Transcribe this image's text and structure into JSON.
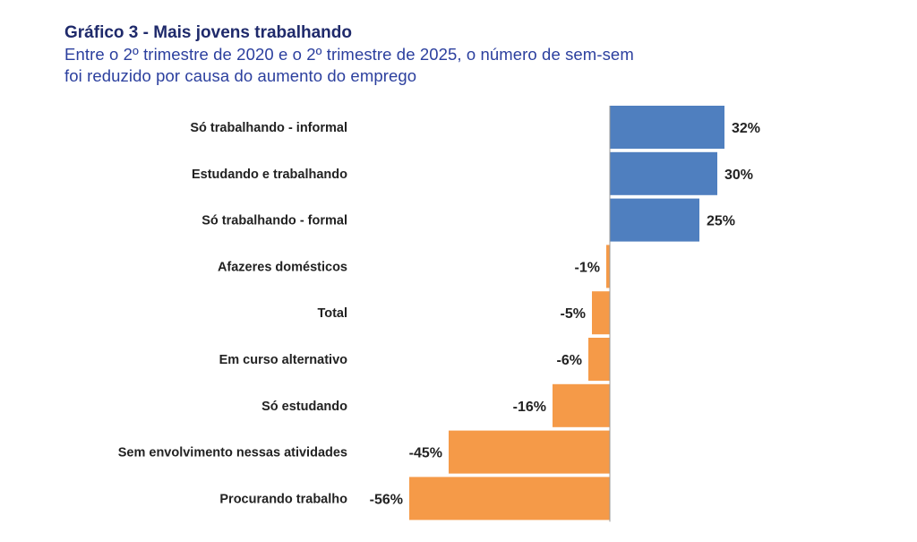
{
  "chart_data": {
    "type": "bar",
    "orientation": "horizontal",
    "title": "Gráfico 3 - Mais jovens trabalhando",
    "subtitle_lines": [
      "Entre o 2º trimestre de 2020 e o 2º trimestre de 2025, o número de sem-sem",
      "foi reduzido por causa do aumento do emprego"
    ],
    "categories": [
      "Só trabalhando - informal",
      "Estudando e trabalhando",
      "Só trabalhando - formal",
      "Afazeres domésticos",
      "Total",
      "Em curso alternativo",
      "Só estudando",
      "Sem envolvimento nessas atividades",
      "Procurando trabalho"
    ],
    "values": [
      32,
      30,
      25,
      -1,
      -5,
      -6,
      -16,
      -45,
      -56
    ],
    "value_labels": [
      "32%",
      "30%",
      "25%",
      "-1%",
      "-5%",
      "-6%",
      "-16%",
      "-45%",
      "-56%"
    ],
    "unit": "%",
    "xlim": [
      -56,
      32
    ],
    "grid": false,
    "colors": {
      "positive": "#4f7fbf",
      "negative": "#f59a48",
      "title": "#1f2a6b",
      "subtitle": "#2b3f9e"
    }
  }
}
